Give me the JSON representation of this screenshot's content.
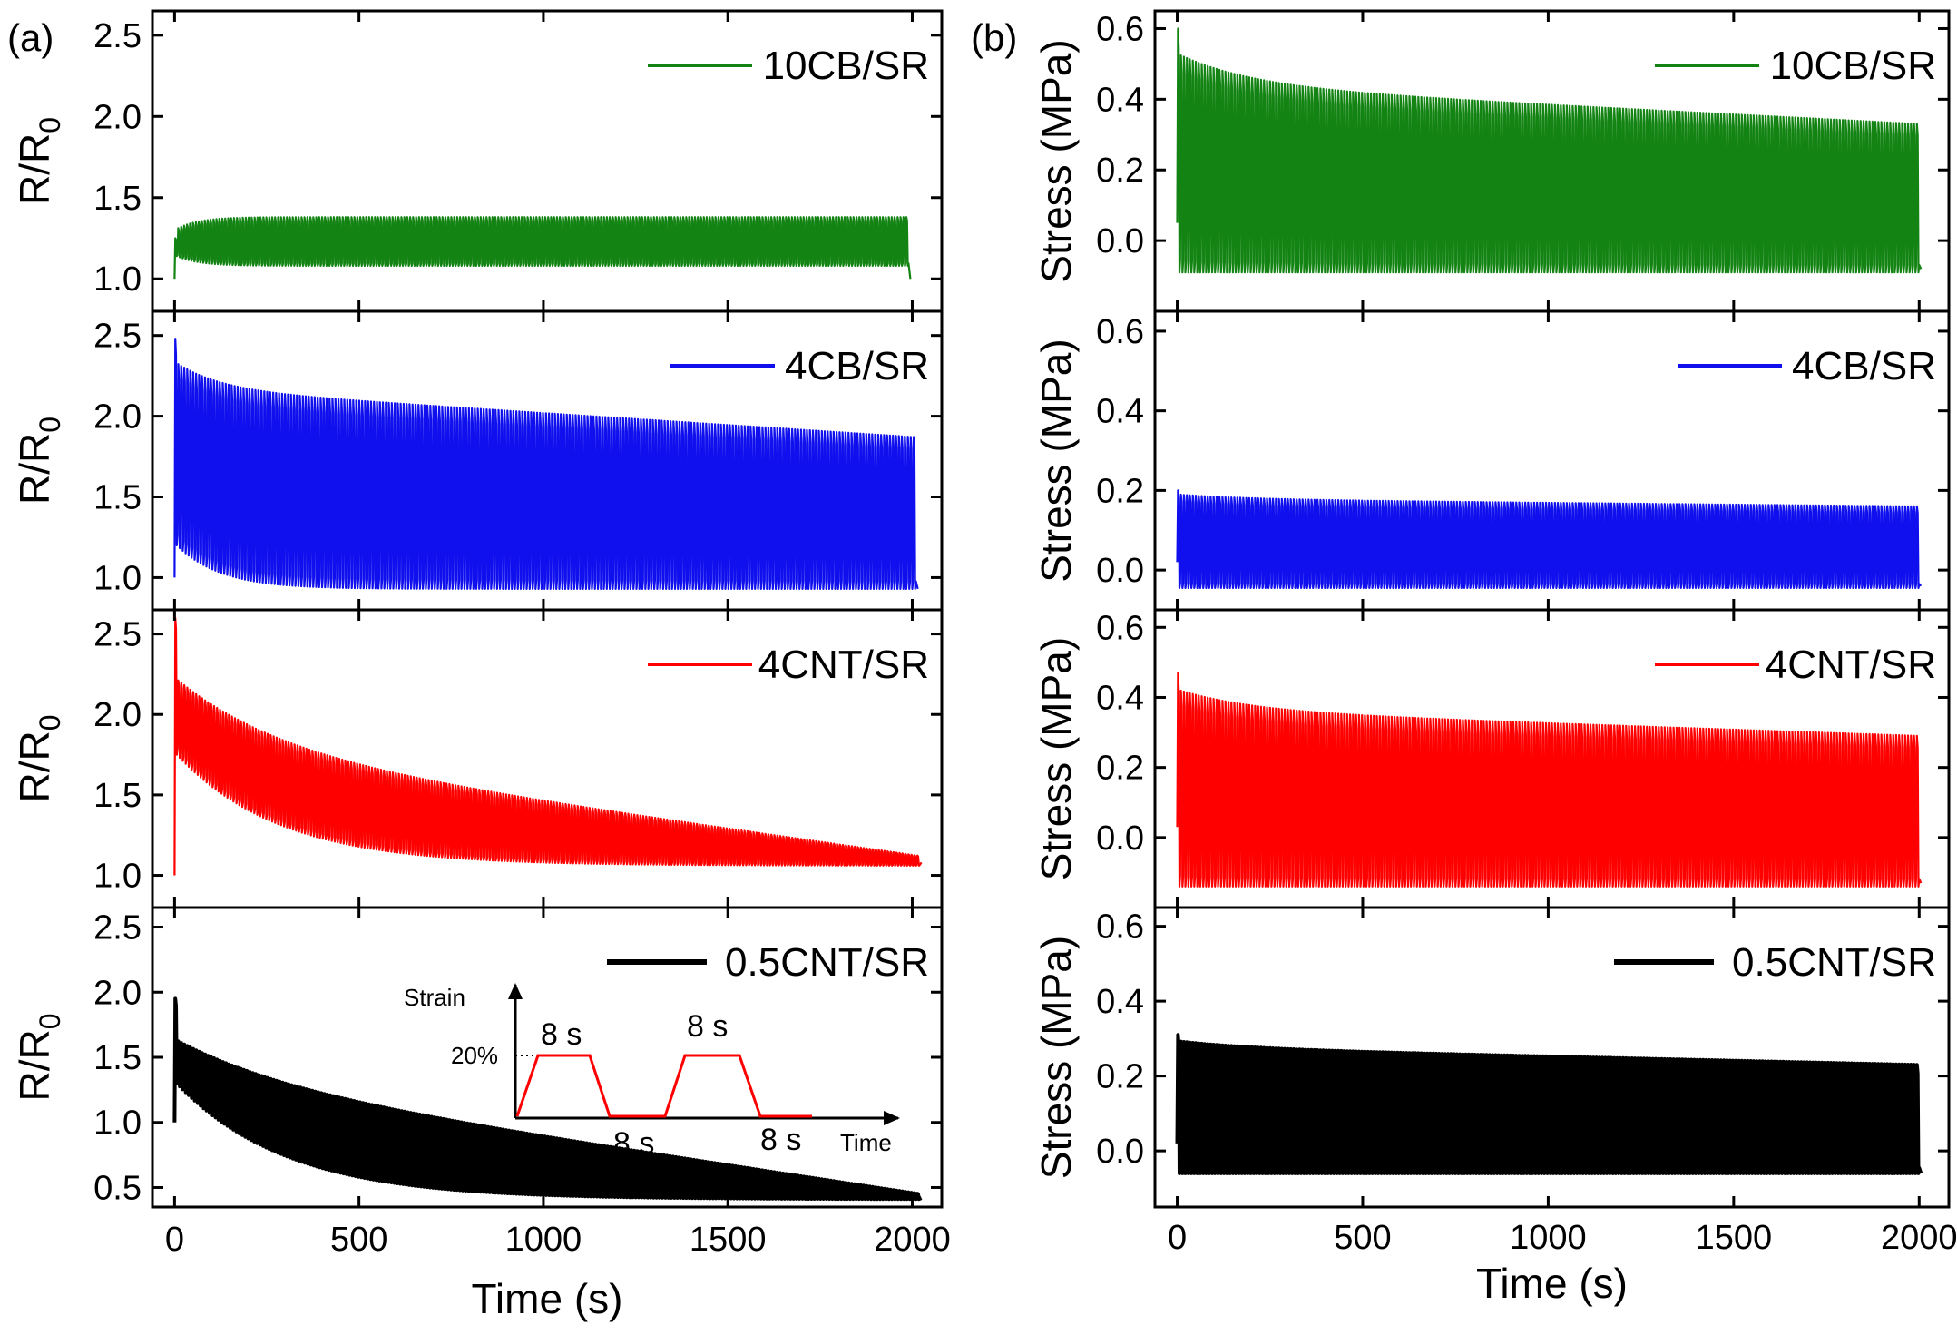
{
  "chart_data": [
    {
      "type": "line",
      "panel_label": "(a)",
      "xlabel": "Time (s)",
      "xlim": [
        -60,
        2080
      ],
      "xticks": [
        "0",
        "500",
        "1000",
        "1500",
        "2000"
      ],
      "xtick_values": [
        0,
        500,
        1000,
        1500,
        2000
      ],
      "subplots": [
        {
          "series": "10CB/SR",
          "color": "#138413",
          "ylabel_main": "R/R",
          "ylabel_sub": "0",
          "ylim": [
            0.8,
            2.65
          ],
          "yticks": [
            "1.0",
            "1.5",
            "2.0",
            "2.5"
          ],
          "ytick_values": [
            1.0,
            1.5,
            2.0,
            2.5
          ],
          "t_end": 1990,
          "cycle": {
            "start": 1.0,
            "peak_first": 1.25,
            "peak_plateau": 1.38,
            "peak_end": 1.38,
            "valley_start": 1.14,
            "valley_end": 1.08,
            "tau": 60,
            "final": 1.0
          }
        },
        {
          "series": "4CB/SR",
          "color": "#1010ee",
          "ylabel_main": "R/R",
          "ylabel_sub": "0",
          "ylim": [
            0.8,
            2.65
          ],
          "yticks": [
            "1.0",
            "1.5",
            "2.0",
            "2.5"
          ],
          "ytick_values": [
            1.0,
            1.5,
            2.0,
            2.5
          ],
          "t_end": 2010,
          "cycle": {
            "start": 1.0,
            "peak_first": 2.48,
            "peak_plateau": 2.2,
            "peak_end": 1.87,
            "valley_start": 1.2,
            "valley_end": 0.93,
            "tau": 120,
            "final": 0.93
          }
        },
        {
          "series": "4CNT/SR",
          "color": "#ff0000",
          "ylabel_main": "R/R",
          "ylabel_sub": "0",
          "ylim": [
            0.8,
            2.65
          ],
          "yticks": [
            "1.0",
            "1.5",
            "2.0",
            "2.5"
          ],
          "ytick_values": [
            1.0,
            1.5,
            2.0,
            2.5
          ],
          "t_end": 2020,
          "cycle": {
            "start": 1.0,
            "peak_first": 2.6,
            "peak_plateau": 1.85,
            "peak_end": 1.12,
            "valley_start": 1.75,
            "valley_end": 1.06,
            "tau": 280,
            "final": 1.08
          }
        },
        {
          "series": "0.5CNT/SR",
          "color": "#000000",
          "ylabel_main": "R/R",
          "ylabel_sub": "0",
          "ylim": [
            0.35,
            2.65
          ],
          "yticks": [
            "0.5",
            "1.0",
            "1.5",
            "2.0",
            "2.5"
          ],
          "ytick_values": [
            0.5,
            1.0,
            1.5,
            2.0,
            2.5
          ],
          "t_end": 2020,
          "cycle": {
            "start": 1.0,
            "peak_first": 1.95,
            "peak_plateau": 1.4,
            "peak_end": 0.45,
            "valley_start": 1.3,
            "valley_end": 0.41,
            "tau": 300,
            "final": 0.42
          }
        }
      ],
      "inset": {
        "ylabel": "Strain",
        "xlabel": "Time",
        "level": "20%",
        "hold_top_1": "8 s",
        "hold_bottom_1": "8 s",
        "hold_top_2": "8 s",
        "hold_bottom_2": "8 s"
      }
    },
    {
      "type": "line",
      "panel_label": "(b)",
      "xlabel": "Time (s)",
      "xlim": [
        -60,
        2080
      ],
      "xticks": [
        "0",
        "500",
        "1000",
        "1500",
        "2000"
      ],
      "xtick_values": [
        0,
        500,
        1000,
        1500,
        2000
      ],
      "subplots": [
        {
          "series": "10CB/SR",
          "color": "#138413",
          "ylabel": "Stress (MPa)",
          "ylim": [
            -0.2,
            0.65
          ],
          "yticks": [
            "0.0",
            "0.2",
            "0.4",
            "0.6"
          ],
          "ytick_values": [
            0.0,
            0.2,
            0.4,
            0.6
          ],
          "t_end": 2000,
          "cycle": {
            "start": 0.05,
            "peak_first": 0.6,
            "peak_plateau": 0.45,
            "peak_end": 0.33,
            "valley_start": -0.09,
            "valley_end": -0.09,
            "tau": 200,
            "final": -0.08
          }
        },
        {
          "series": "4CB/SR",
          "color": "#1010ee",
          "ylabel": "Stress (MPa)",
          "ylim": [
            -0.1,
            0.65
          ],
          "yticks": [
            "0.0",
            "0.2",
            "0.4",
            "0.6"
          ],
          "ytick_values": [
            0.0,
            0.2,
            0.4,
            0.6
          ],
          "t_end": 2000,
          "cycle": {
            "start": 0.02,
            "peak_first": 0.2,
            "peak_plateau": 0.18,
            "peak_end": 0.16,
            "valley_start": -0.045,
            "valley_end": -0.045,
            "tau": 200,
            "final": -0.04
          }
        },
        {
          "series": "4CNT/SR",
          "color": "#ff0000",
          "ylabel": "Stress (MPa)",
          "ylim": [
            -0.2,
            0.65
          ],
          "yticks": [
            "0.0",
            "0.2",
            "0.4",
            "0.6"
          ],
          "ytick_values": [
            0.0,
            0.2,
            0.4,
            0.6
          ],
          "t_end": 2000,
          "cycle": {
            "start": 0.03,
            "peak_first": 0.47,
            "peak_plateau": 0.37,
            "peak_end": 0.29,
            "valley_start": -0.14,
            "valley_end": -0.14,
            "tau": 200,
            "final": -0.13
          }
        },
        {
          "series": "0.5CNT/SR",
          "color": "#000000",
          "ylabel": "Stress (MPa)",
          "ylim": [
            -0.15,
            0.65
          ],
          "yticks": [
            "0.0",
            "0.2",
            "0.4",
            "0.6"
          ],
          "ytick_values": [
            0.0,
            0.2,
            0.4,
            0.6
          ],
          "t_end": 2000,
          "cycle": {
            "start": 0.02,
            "peak_first": 0.31,
            "peak_plateau": 0.28,
            "peak_end": 0.23,
            "valley_start": -0.06,
            "valley_end": -0.06,
            "tau": 200,
            "final": -0.06
          }
        }
      ]
    }
  ]
}
